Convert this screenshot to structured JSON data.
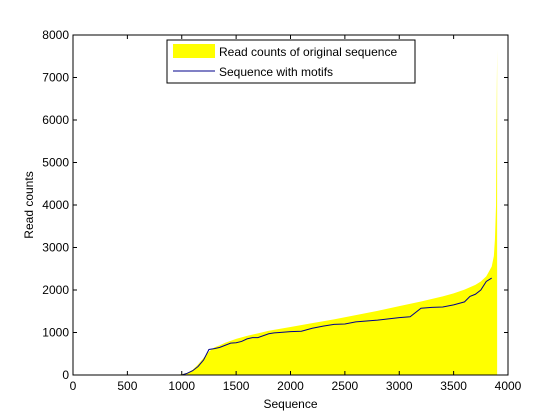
{
  "chart_data": {
    "type": "area",
    "xlabel": "Sequence",
    "ylabel": "Read counts",
    "xlim": [
      0,
      4000
    ],
    "ylim": [
      0,
      8000
    ],
    "xticks": [
      0,
      500,
      1000,
      1500,
      2000,
      2500,
      3000,
      3500,
      4000
    ],
    "yticks": [
      0,
      1000,
      2000,
      3000,
      4000,
      5000,
      6000,
      7000,
      8000
    ],
    "grid": false,
    "legend_position": "top-center",
    "series": [
      {
        "name": "Read counts of original sequence",
        "kind": "area",
        "color": "#ffff00",
        "x": [
          950,
          1000,
          1050,
          1100,
          1150,
          1200,
          1250,
          1300,
          1350,
          1400,
          1500,
          1600,
          1700,
          1800,
          2000,
          2200,
          2400,
          2600,
          2800,
          3000,
          3200,
          3400,
          3500,
          3600,
          3700,
          3750,
          3800,
          3850,
          3870,
          3880,
          3890,
          3895,
          3900
        ],
        "y": [
          0,
          20,
          50,
          120,
          250,
          400,
          550,
          650,
          700,
          760,
          850,
          920,
          980,
          1040,
          1130,
          1220,
          1310,
          1410,
          1510,
          1620,
          1730,
          1850,
          1920,
          2010,
          2120,
          2200,
          2320,
          2550,
          2800,
          3200,
          4000,
          6000,
          7650
        ]
      },
      {
        "name": "Sequence with motifs",
        "kind": "line",
        "color": "#00008b",
        "x": [
          1000,
          1050,
          1100,
          1150,
          1200,
          1250,
          1300,
          1350,
          1400,
          1450,
          1500,
          1550,
          1600,
          1650,
          1700,
          1800,
          1850,
          1900,
          2000,
          2100,
          2200,
          2300,
          2400,
          2500,
          2600,
          2700,
          2800,
          2900,
          3000,
          3100,
          3200,
          3300,
          3400,
          3500,
          3600,
          3650,
          3700,
          3750,
          3800,
          3850
        ],
        "y": [
          0,
          40,
          100,
          200,
          350,
          600,
          620,
          650,
          700,
          750,
          760,
          790,
          850,
          880,
          880,
          970,
          990,
          1000,
          1020,
          1030,
          1100,
          1150,
          1190,
          1200,
          1250,
          1270,
          1290,
          1320,
          1350,
          1370,
          1570,
          1590,
          1600,
          1650,
          1720,
          1850,
          1900,
          2000,
          2200,
          2280
        ]
      }
    ]
  }
}
